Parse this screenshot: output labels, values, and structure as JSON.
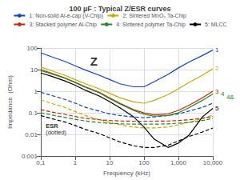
{
  "chart_data": {
    "type": "line",
    "title": "100 µF : Typical Z/ESR curves",
    "xlabel": "Frequency (kHz)",
    "ylabel": "Impedance  (Ohm)",
    "log": true,
    "grid": true,
    "legend": "top",
    "x": [
      0.1,
      0.2,
      0.5,
      1,
      2,
      5,
      10,
      20,
      50,
      100,
      200,
      500,
      1000,
      2000,
      5000,
      10000
    ],
    "xlim": [
      0.1,
      10000
    ],
    "ylim": [
      0.001,
      100
    ],
    "xticks": [
      {
        "value": 0.1,
        "label": "0,1"
      },
      1,
      10,
      100,
      {
        "value": 1000,
        "label": "1,000"
      },
      {
        "value": 10000,
        "label": "10,000"
      }
    ],
    "yticks": [
      0.001,
      0.01,
      0.1,
      1,
      10,
      100
    ],
    "series": [
      {
        "name": "1: Non-solid Al-e-cap (V-Chip)",
        "color": "#1144cc",
        "line_style": "solid",
        "values": [
          60,
          40,
          24,
          15,
          9.5,
          5.5,
          3.5,
          2.2,
          1.6,
          1.6,
          2.8,
          6,
          12,
          22,
          45,
          80
        ]
      },
      {
        "name": "1: Non-solid Al-e-cap (V-Chip)",
        "color": "#1144cc",
        "line_style": "dashed",
        "values": [
          0.9,
          0.65,
          0.42,
          0.28,
          0.18,
          0.12,
          0.09,
          0.075,
          0.065,
          0.06,
          0.065,
          0.075,
          0.09,
          0.12,
          0.18,
          0.28
        ]
      },
      {
        "name": "2: Sintered MnO₂ Ta-Chip",
        "color": "#ccaa00",
        "line_style": "solid",
        "values": [
          13,
          9,
          5.5,
          3.5,
          2.2,
          1.3,
          0.8,
          0.5,
          0.32,
          0.28,
          0.38,
          0.7,
          1.3,
          2.5,
          5.5,
          11
        ]
      },
      {
        "name": "2: Sintered MnO₂ Ta-Chip",
        "color": "#ccaa00",
        "line_style": "dashed",
        "values": [
          0.4,
          0.28,
          0.18,
          0.115,
          0.075,
          0.048,
          0.036,
          0.028,
          0.022,
          0.02,
          0.02,
          0.022,
          0.028,
          0.036,
          0.055,
          0.08
        ]
      },
      {
        "name": "3: Stacked polymer Al-Chip",
        "color": "#cc2200",
        "line_style": "solid",
        "values": [
          10,
          7,
          4.2,
          2.6,
          1.6,
          0.9,
          0.5,
          0.28,
          0.14,
          0.1,
          0.08,
          0.09,
          0.13,
          0.22,
          0.5,
          1.0
        ]
      },
      {
        "name": "3: Stacked polymer Al-Chip",
        "color": "#cc2200",
        "line_style": "dashed",
        "values": [
          0.14,
          0.11,
          0.085,
          0.068,
          0.056,
          0.048,
          0.044,
          0.042,
          0.041,
          0.041,
          0.041,
          0.042,
          0.044,
          0.048,
          0.056,
          0.068
        ]
      },
      {
        "name": "4: Sintered polymer Ta-Chip",
        "color": "#228822",
        "line_style": "solid",
        "values": [
          9,
          6.5,
          4.0,
          2.5,
          1.5,
          0.85,
          0.46,
          0.26,
          0.13,
          0.085,
          0.07,
          0.075,
          0.1,
          0.17,
          0.38,
          0.75
        ]
      },
      {
        "name": "4: Sintered polymer Ta-Chip",
        "color": "#228822",
        "line_style": "dashed",
        "values": [
          0.1,
          0.08,
          0.062,
          0.05,
          0.042,
          0.036,
          0.033,
          0.031,
          0.03,
          0.03,
          0.03,
          0.031,
          0.033,
          0.036,
          0.044,
          0.055
        ]
      },
      {
        "name": "5: MLCC",
        "color": "#000000",
        "line_style": "solid",
        "values": [
          7,
          5,
          3.0,
          1.9,
          1.1,
          0.6,
          0.33,
          0.17,
          0.065,
          0.022,
          0.006,
          0.0025,
          0.004,
          0.009,
          0.065,
          0.16
        ]
      },
      {
        "name": "5: MLCC",
        "color": "#000000",
        "line_style": "dashed",
        "values": [
          0.075,
          0.055,
          0.038,
          0.026,
          0.017,
          0.011,
          0.007,
          0.0045,
          0.003,
          0.0025,
          0.0025,
          0.0032,
          0.005,
          0.008,
          0.013,
          0.02
        ]
      }
    ],
    "annotations": [
      {
        "text": "Z",
        "x": 3.5,
        "y": 25
      },
      {
        "text": "ESR",
        "x": 0.14,
        "y": 0.025
      },
      {
        "text": "(dotted)",
        "x": 0.14,
        "y": 0.012
      },
      {
        "text": "1",
        "x": 10000,
        "y": 80,
        "color": "#1144cc"
      },
      {
        "text": "2",
        "x": 10000,
        "y": 11,
        "color": "#ccaa00"
      },
      {
        "text": "3",
        "x": 10000,
        "y": 1.0,
        "color": "#cc2200"
      },
      {
        "text": "4",
        "x": 10000,
        "y": 0.75,
        "color": "#228822"
      },
      {
        "text": "5",
        "x": 10000,
        "y": 0.16,
        "color": "#000000"
      },
      {
        "text": "4&",
        "x": 10000,
        "y": 0.55,
        "color": "#228822"
      }
    ]
  }
}
